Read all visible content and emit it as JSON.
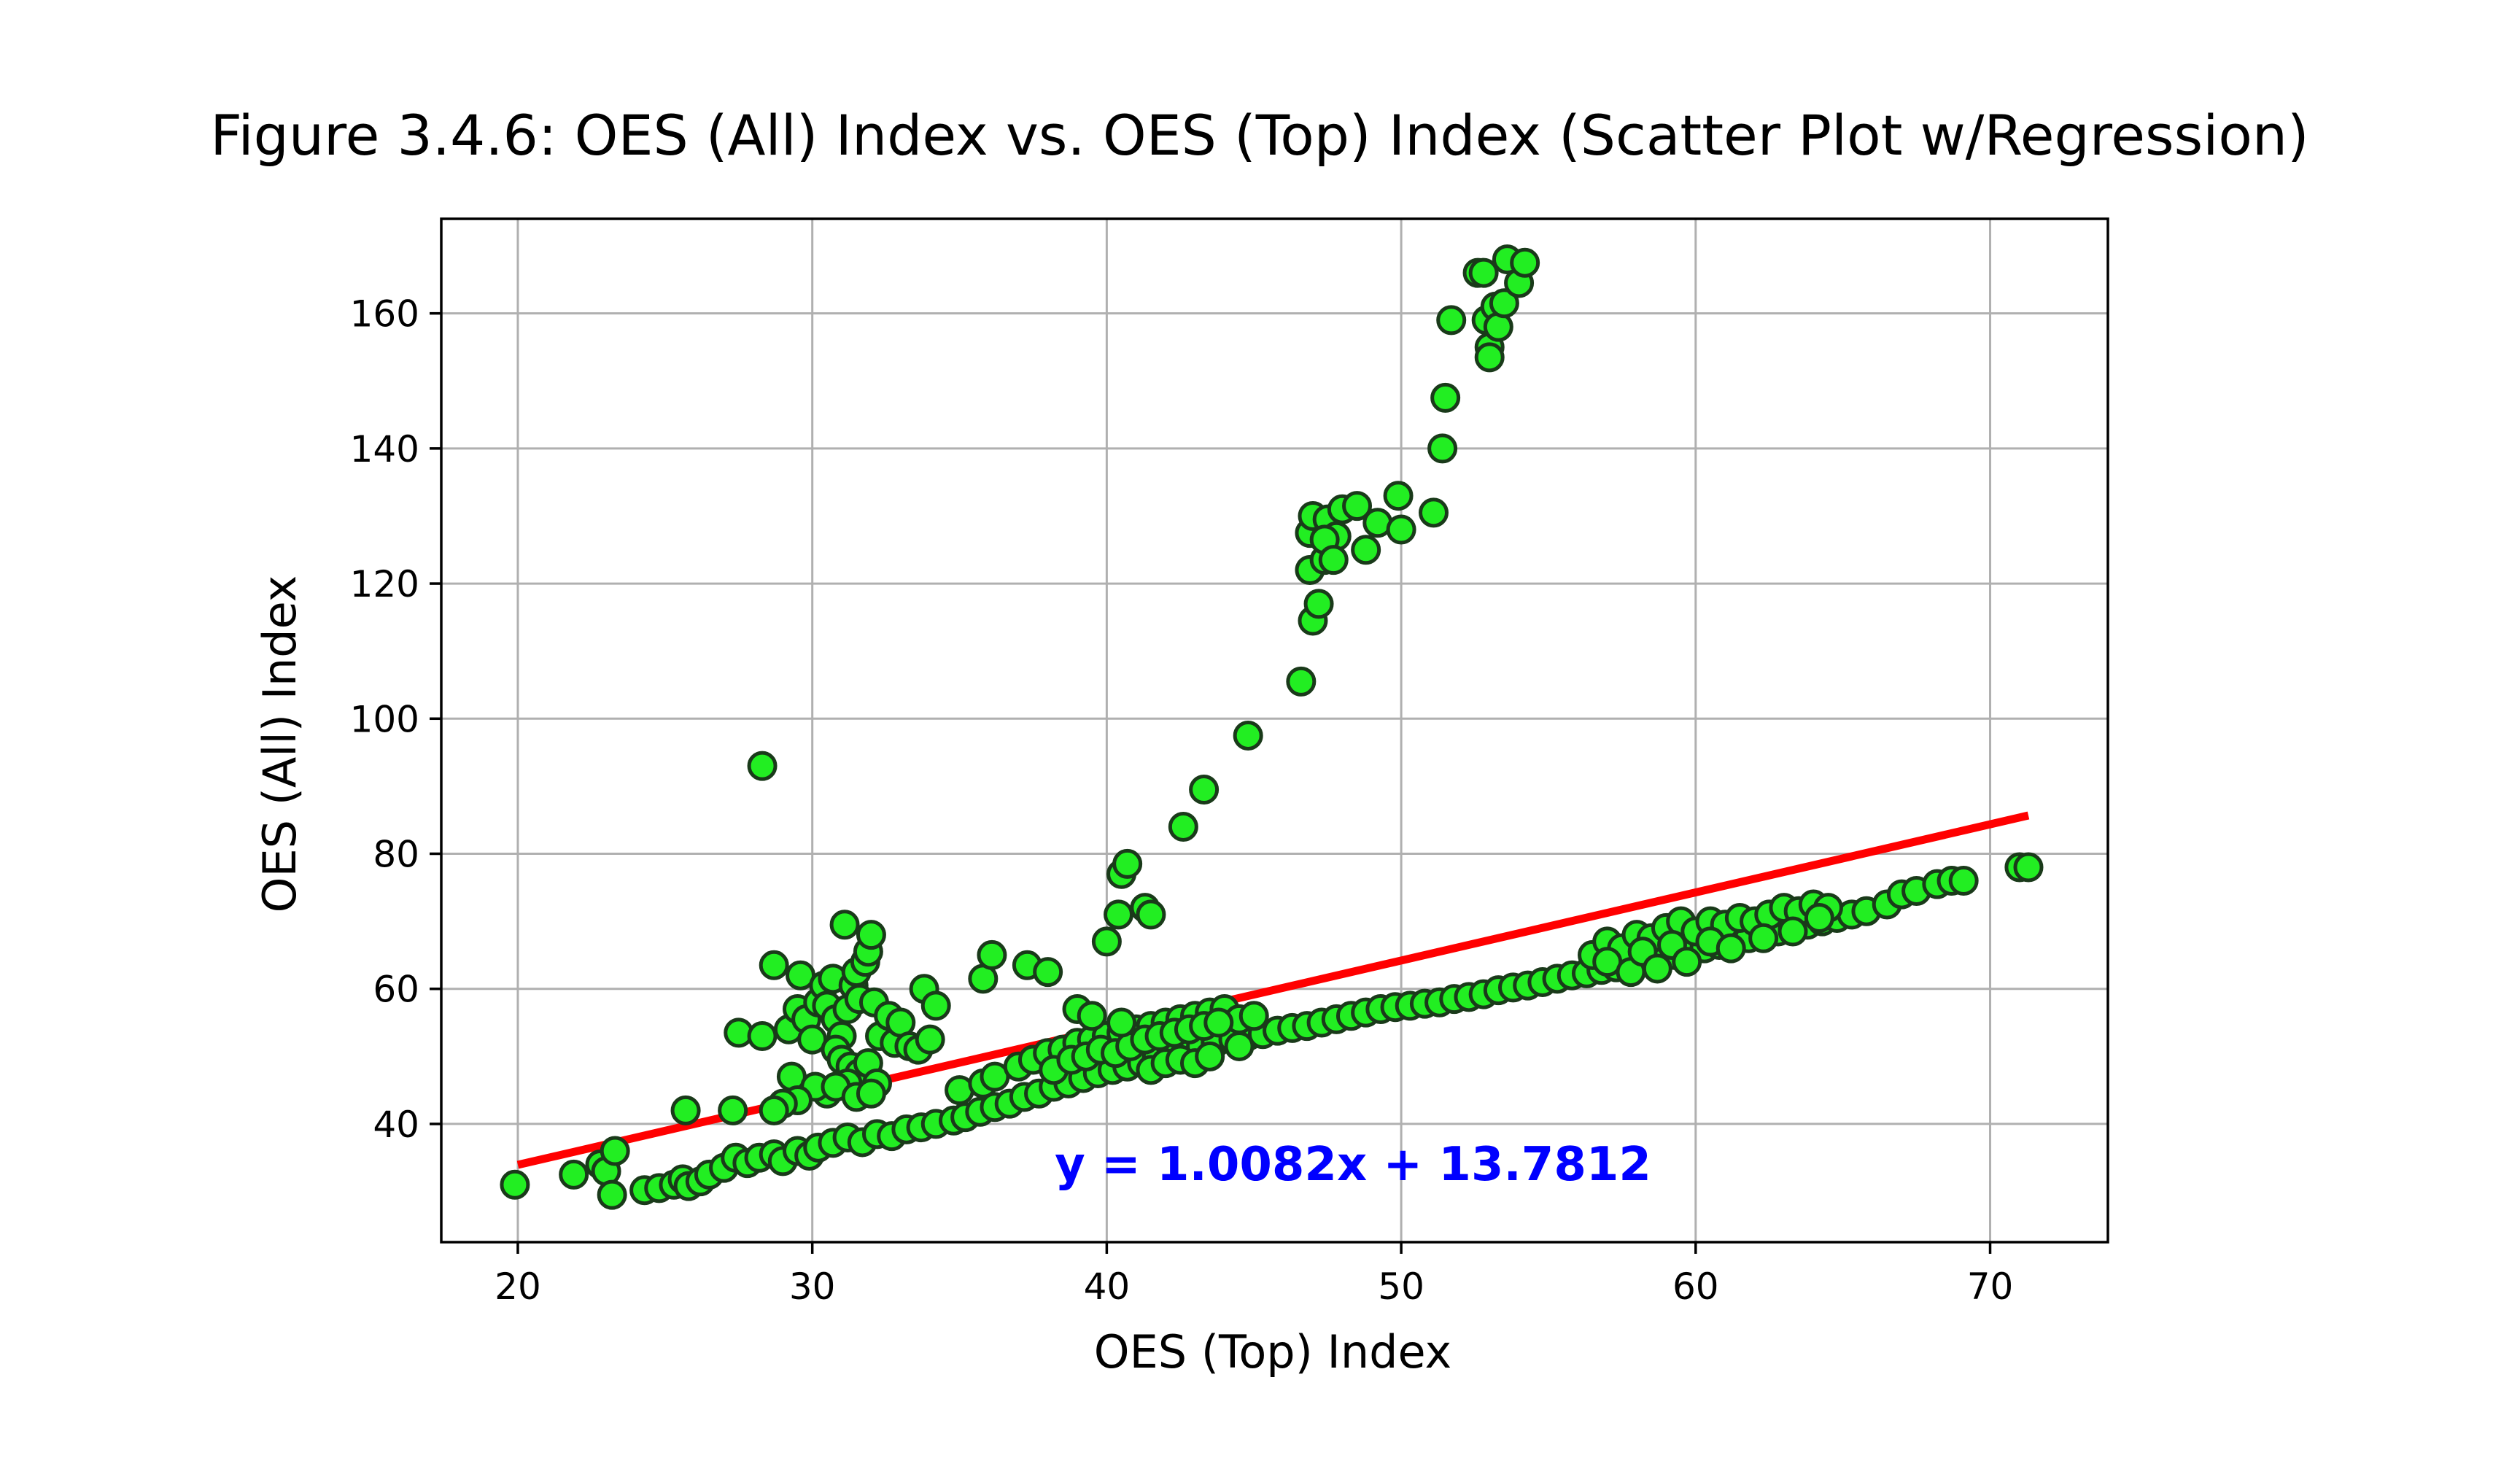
{
  "chart_data": {
    "type": "scatter",
    "title": "Figure 3.4.6: OES (All) Index vs. OES (Top) Index (Scatter Plot w/Regression)",
    "xlabel": "OES (Top) Index",
    "ylabel": "OES (All) Index",
    "xlim": [
      17.4,
      74.0
    ],
    "ylim": [
      22.5,
      174.0
    ],
    "xticks": [
      20,
      30,
      40,
      50,
      60,
      70
    ],
    "yticks": [
      40,
      60,
      80,
      100,
      120,
      140,
      160
    ],
    "xtick_labels": [
      "20",
      "30",
      "40",
      "50",
      "60",
      "70"
    ],
    "ytick_labels": [
      "40",
      "60",
      "80",
      "100",
      "120",
      "140",
      "160"
    ],
    "grid": true,
    "annotation": "y = 1.0082x + 13.7812",
    "marker_color": "#22ee22",
    "marker_edge_color": "#1a3a1a",
    "line_color": "#ff0000",
    "annotation_color": "#0000ff",
    "regression": {
      "slope": 1.0082,
      "intercept": 13.7812,
      "x_range": [
        20.0,
        71.3
      ]
    },
    "points": [
      [
        19.9,
        31.0
      ],
      [
        21.9,
        32.5
      ],
      [
        22.8,
        34.0
      ],
      [
        23.0,
        33.0
      ],
      [
        23.2,
        29.5
      ],
      [
        23.3,
        36.0
      ],
      [
        24.3,
        30.2
      ],
      [
        24.8,
        30.5
      ],
      [
        25.3,
        31.0
      ],
      [
        25.6,
        31.8
      ],
      [
        25.8,
        30.8
      ],
      [
        26.2,
        31.5
      ],
      [
        26.5,
        32.5
      ],
      [
        27.0,
        33.5
      ],
      [
        27.4,
        35.0
      ],
      [
        27.8,
        34.2
      ],
      [
        28.2,
        35.0
      ],
      [
        28.7,
        35.5
      ],
      [
        29.0,
        34.5
      ],
      [
        29.5,
        36.0
      ],
      [
        29.9,
        35.3
      ],
      [
        30.2,
        36.5
      ],
      [
        30.7,
        37.2
      ],
      [
        31.2,
        38.0
      ],
      [
        31.7,
        37.3
      ],
      [
        32.2,
        38.5
      ],
      [
        32.7,
        38.2
      ],
      [
        33.2,
        39.2
      ],
      [
        33.7,
        39.5
      ],
      [
        34.2,
        40.0
      ],
      [
        34.8,
        40.5
      ],
      [
        35.2,
        41.0
      ],
      [
        35.7,
        41.8
      ],
      [
        36.2,
        42.5
      ],
      [
        36.7,
        43.0
      ],
      [
        37.2,
        44.0
      ],
      [
        37.7,
        44.5
      ],
      [
        38.2,
        45.5
      ],
      [
        38.7,
        46.0
      ],
      [
        39.2,
        46.8
      ],
      [
        39.7,
        47.5
      ],
      [
        40.2,
        48.0
      ],
      [
        40.7,
        48.5
      ],
      [
        41.2,
        49.0
      ],
      [
        41.7,
        49.8
      ],
      [
        42.2,
        50.5
      ],
      [
        42.7,
        50.8
      ],
      [
        43.2,
        51.5
      ],
      [
        43.7,
        52.0
      ],
      [
        44.3,
        52.5
      ],
      [
        44.8,
        53.0
      ],
      [
        45.3,
        53.3
      ],
      [
        45.8,
        53.8
      ],
      [
        46.3,
        54.2
      ],
      [
        46.8,
        54.5
      ],
      [
        47.3,
        55.0
      ],
      [
        47.8,
        55.5
      ],
      [
        48.3,
        56.0
      ],
      [
        48.8,
        56.5
      ],
      [
        49.3,
        57.0
      ],
      [
        49.8,
        57.3
      ],
      [
        50.3,
        57.5
      ],
      [
        50.8,
        57.8
      ],
      [
        51.3,
        58.0
      ],
      [
        51.8,
        58.5
      ],
      [
        52.3,
        58.8
      ],
      [
        52.8,
        59.2
      ],
      [
        53.3,
        59.8
      ],
      [
        53.8,
        60.2
      ],
      [
        54.3,
        60.5
      ],
      [
        54.8,
        61.0
      ],
      [
        55.3,
        61.5
      ],
      [
        55.8,
        62.0
      ],
      [
        56.3,
        62.3
      ],
      [
        56.8,
        62.8
      ],
      [
        57.3,
        63.2
      ],
      [
        57.8,
        63.5
      ],
      [
        58.3,
        64.0
      ],
      [
        58.8,
        64.5
      ],
      [
        59.3,
        65.0
      ],
      [
        59.8,
        65.5
      ],
      [
        60.3,
        66.0
      ],
      [
        60.8,
        66.5
      ],
      [
        61.3,
        67.0
      ],
      [
        61.8,
        67.5
      ],
      [
        62.3,
        68.0
      ],
      [
        62.8,
        68.5
      ],
      [
        63.3,
        69.0
      ],
      [
        63.8,
        69.5
      ],
      [
        64.3,
        70.0
      ],
      [
        64.8,
        70.5
      ],
      [
        65.3,
        71.0
      ],
      [
        65.8,
        71.5
      ],
      [
        66.5,
        72.5
      ],
      [
        67.0,
        74.0
      ],
      [
        67.5,
        74.5
      ],
      [
        68.2,
        75.5
      ],
      [
        68.7,
        76.0
      ],
      [
        69.1,
        76.0
      ],
      [
        71.0,
        78.0
      ],
      [
        71.3,
        78.0
      ],
      [
        56.5,
        65.0
      ],
      [
        57.0,
        67.0
      ],
      [
        57.5,
        66.0
      ],
      [
        58.0,
        68.0
      ],
      [
        58.5,
        67.5
      ],
      [
        59.0,
        69.0
      ],
      [
        59.5,
        70.0
      ],
      [
        60.0,
        68.5
      ],
      [
        60.5,
        70.0
      ],
      [
        61.0,
        69.5
      ],
      [
        61.5,
        70.5
      ],
      [
        62.0,
        70.0
      ],
      [
        62.5,
        71.0
      ],
      [
        63.0,
        72.0
      ],
      [
        63.5,
        71.5
      ],
      [
        64.0,
        72.5
      ],
      [
        64.5,
        72.0
      ],
      [
        57.0,
        64.0
      ],
      [
        57.8,
        62.5
      ],
      [
        58.2,
        65.5
      ],
      [
        58.7,
        63.0
      ],
      [
        59.2,
        66.5
      ],
      [
        59.7,
        64.0
      ],
      [
        60.5,
        67.0
      ],
      [
        61.2,
        66.0
      ],
      [
        62.3,
        67.5
      ],
      [
        63.3,
        68.5
      ],
      [
        64.2,
        70.5
      ],
      [
        35.0,
        45.0
      ],
      [
        35.8,
        46.0
      ],
      [
        36.2,
        47.0
      ],
      [
        37.0,
        48.5
      ],
      [
        37.5,
        49.5
      ],
      [
        38.0,
        50.5
      ],
      [
        38.5,
        51.0
      ],
      [
        39.0,
        52.0
      ],
      [
        39.5,
        52.5
      ],
      [
        40.0,
        53.0
      ],
      [
        40.5,
        53.5
      ],
      [
        41.0,
        54.0
      ],
      [
        41.5,
        54.5
      ],
      [
        42.0,
        55.0
      ],
      [
        42.5,
        55.5
      ],
      [
        43.0,
        56.0
      ],
      [
        43.5,
        56.5
      ],
      [
        44.0,
        57.0
      ],
      [
        44.5,
        55.5
      ],
      [
        45.0,
        56.0
      ],
      [
        38.2,
        48.0
      ],
      [
        38.8,
        49.5
      ],
      [
        39.3,
        50.0
      ],
      [
        39.8,
        51.0
      ],
      [
        40.3,
        50.5
      ],
      [
        40.8,
        51.5
      ],
      [
        41.3,
        52.5
      ],
      [
        41.8,
        53.0
      ],
      [
        42.3,
        53.5
      ],
      [
        42.8,
        54.0
      ],
      [
        43.3,
        54.5
      ],
      [
        43.8,
        55.0
      ],
      [
        41.5,
        48.0
      ],
      [
        42.0,
        49.0
      ],
      [
        42.5,
        49.5
      ],
      [
        43.0,
        49.0
      ],
      [
        43.5,
        50.0
      ],
      [
        44.5,
        51.5
      ],
      [
        39.0,
        57.0
      ],
      [
        39.5,
        56.0
      ],
      [
        40.5,
        55.0
      ],
      [
        27.5,
        53.5
      ],
      [
        28.3,
        53.0
      ],
      [
        28.7,
        63.5
      ],
      [
        29.2,
        54.0
      ],
      [
        29.3,
        47.0
      ],
      [
        29.5,
        57.0
      ],
      [
        29.6,
        62.0
      ],
      [
        29.8,
        55.5
      ],
      [
        30.0,
        52.5
      ],
      [
        30.2,
        58.0
      ],
      [
        30.4,
        60.5
      ],
      [
        30.5,
        57.5
      ],
      [
        30.7,
        61.5
      ],
      [
        30.8,
        55.5
      ],
      [
        31.0,
        53.0
      ],
      [
        31.1,
        69.5
      ],
      [
        31.2,
        57.0
      ],
      [
        31.4,
        60.5
      ],
      [
        31.5,
        62.5
      ],
      [
        31.6,
        58.5
      ],
      [
        31.8,
        64.0
      ],
      [
        31.9,
        65.5
      ],
      [
        32.0,
        68.0
      ],
      [
        32.1,
        58.0
      ],
      [
        32.3,
        53.0
      ],
      [
        32.6,
        56.0
      ],
      [
        32.8,
        52.0
      ],
      [
        33.0,
        55.0
      ],
      [
        33.3,
        51.5
      ],
      [
        33.6,
        51.0
      ],
      [
        33.8,
        60.0
      ],
      [
        34.0,
        52.5
      ],
      [
        34.2,
        57.5
      ],
      [
        30.8,
        51.0
      ],
      [
        31.0,
        49.5
      ],
      [
        31.3,
        48.5
      ],
      [
        31.6,
        47.5
      ],
      [
        31.9,
        49.0
      ],
      [
        32.2,
        46.0
      ],
      [
        31.2,
        46.0
      ],
      [
        30.5,
        44.5
      ],
      [
        30.1,
        45.5
      ],
      [
        29.5,
        43.5
      ],
      [
        29.0,
        43.0
      ],
      [
        28.7,
        42.0
      ],
      [
        30.8,
        45.5
      ],
      [
        31.5,
        44.0
      ],
      [
        32.0,
        44.5
      ],
      [
        27.3,
        42.0
      ],
      [
        25.7,
        42.0
      ],
      [
        28.3,
        93.0
      ],
      [
        35.8,
        61.5
      ],
      [
        36.1,
        65.0
      ],
      [
        37.3,
        63.5
      ],
      [
        38.0,
        62.5
      ],
      [
        40.0,
        67.0
      ],
      [
        40.4,
        71.0
      ],
      [
        40.5,
        77.0
      ],
      [
        40.7,
        78.5
      ],
      [
        41.3,
        72.0
      ],
      [
        41.5,
        71.0
      ],
      [
        42.6,
        84.0
      ],
      [
        43.3,
        89.5
      ],
      [
        44.8,
        97.5
      ],
      [
        46.6,
        105.5
      ],
      [
        47.0,
        114.5
      ],
      [
        47.2,
        117.0
      ],
      [
        46.9,
        122.0
      ],
      [
        47.4,
        123.5
      ],
      [
        46.9,
        127.5
      ],
      [
        47.0,
        130.0
      ],
      [
        47.5,
        129.5
      ],
      [
        47.8,
        127.0
      ],
      [
        48.0,
        131.0
      ],
      [
        48.5,
        131.5
      ],
      [
        48.8,
        125.0
      ],
      [
        49.2,
        129.0
      ],
      [
        47.4,
        126.5
      ],
      [
        47.7,
        123.5
      ],
      [
        49.9,
        133.0
      ],
      [
        50.0,
        128.0
      ],
      [
        51.1,
        130.5
      ],
      [
        51.4,
        140.0
      ],
      [
        51.5,
        147.5
      ],
      [
        51.7,
        159.0
      ],
      [
        52.6,
        166.0
      ],
      [
        52.8,
        166.0
      ],
      [
        52.9,
        159.0
      ],
      [
        53.0,
        155.0
      ],
      [
        53.0,
        153.5
      ],
      [
        53.2,
        161.0
      ],
      [
        53.3,
        158.0
      ],
      [
        53.5,
        161.5
      ],
      [
        53.6,
        168.0
      ],
      [
        54.0,
        164.5
      ],
      [
        54.2,
        167.5
      ]
    ]
  }
}
